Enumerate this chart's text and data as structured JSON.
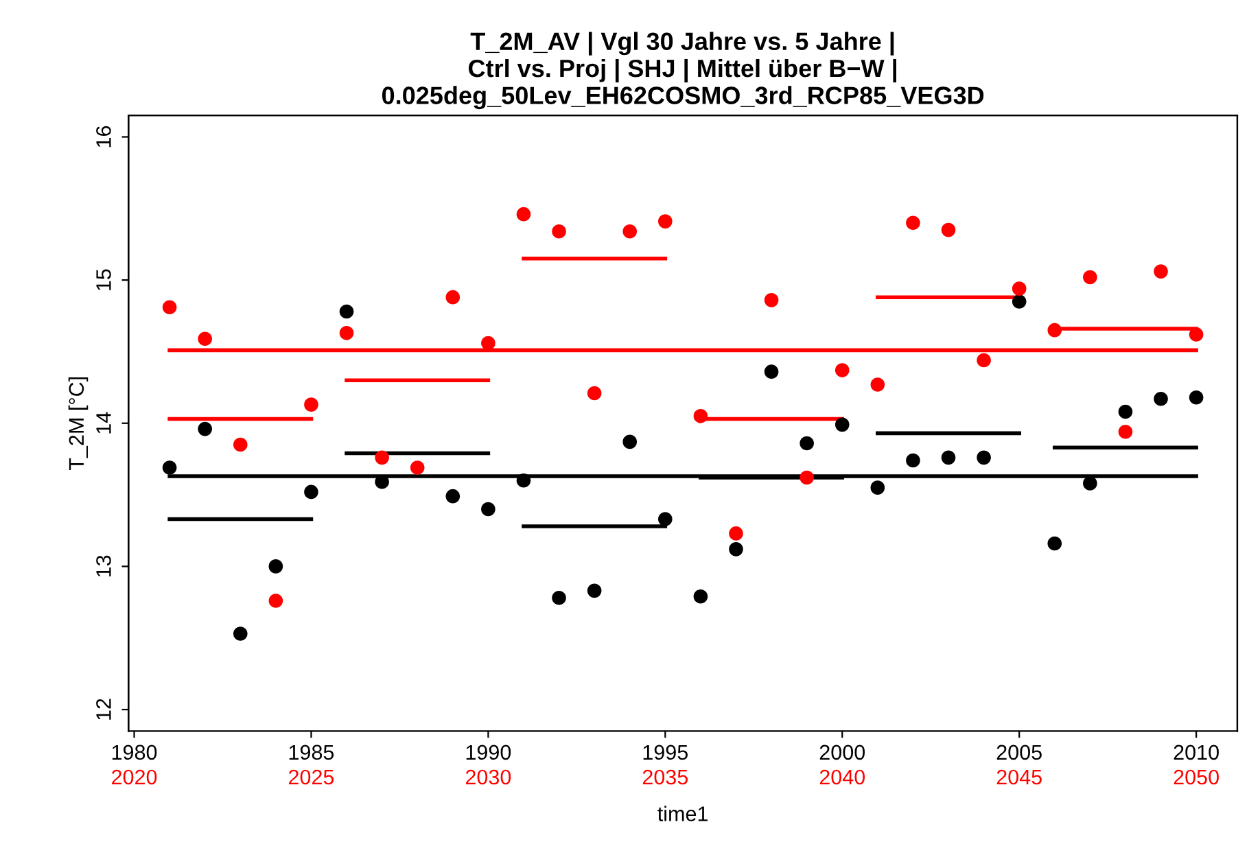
{
  "chart_data": {
    "type": "scatter",
    "title": "T_2M_AV | Vgl 30 Jahre vs. 5 Jahre |\nCtrl vs. Proj | SHJ | Mittel über B−W |\n0.025deg_50Lev_EH62COSMO_3rd_RCP85_VEG3D",
    "xlabel": "time1",
    "ylabel": "T_2M [°C]",
    "xlim": [
      1979.84,
      2011.16
    ],
    "xticks": [
      1980,
      1985,
      1990,
      1995,
      2000,
      2005,
      2010
    ],
    "x2lim": [
      2019.84,
      2051.16
    ],
    "x2ticks": [
      2020,
      2025,
      2030,
      2035,
      2040,
      2045,
      2050
    ],
    "ylim": [
      11.85,
      16.15
    ],
    "yticks": [
      12,
      13,
      14,
      15,
      16
    ],
    "grid": false,
    "legend": false,
    "series": [
      {
        "color": "#000000",
        "marker": "circle",
        "x": [
          1981,
          1982,
          1983,
          1984,
          1985,
          1986,
          1987,
          1988,
          1989,
          1990,
          1991,
          1992,
          1993,
          1994,
          1995,
          1996,
          1997,
          1998,
          1999,
          2000,
          2001,
          2002,
          2003,
          2004,
          2005,
          2006,
          2007,
          2008,
          2009,
          2010
        ],
        "values": [
          13.69,
          13.96,
          12.53,
          13.0,
          13.52,
          14.78,
          13.59,
          null,
          13.49,
          13.4,
          13.6,
          12.78,
          12.83,
          13.87,
          13.33,
          12.79,
          13.12,
          14.36,
          13.86,
          13.99,
          13.55,
          13.74,
          13.76,
          13.76,
          14.85,
          13.16,
          13.58,
          14.08,
          14.17,
          14.18
        ]
      },
      {
        "color": "#ff0000",
        "marker": "circle",
        "axis": "x2",
        "x": [
          2021,
          2022,
          2023,
          2024,
          2025,
          2026,
          2027,
          2028,
          2029,
          2030,
          2031,
          2032,
          2033,
          2034,
          2035,
          2036,
          2037,
          2038,
          2039,
          2040,
          2041,
          2042,
          2043,
          2044,
          2045,
          2046,
          2047,
          2048,
          2049,
          2050
        ],
        "values": [
          14.81,
          14.59,
          13.85,
          12.76,
          14.13,
          14.63,
          13.76,
          13.69,
          14.88,
          14.56,
          15.46,
          15.34,
          14.21,
          15.34,
          15.41,
          14.05,
          13.23,
          14.86,
          13.62,
          14.37,
          14.27,
          15.4,
          15.35,
          14.44,
          14.94,
          14.65,
          15.02,
          13.94,
          15.06,
          14.62
        ]
      },
      {
        "type": "line",
        "color": "#000000",
        "x": [
          1981,
          2010
        ],
        "values": [
          13.63,
          13.63
        ]
      },
      {
        "type": "line",
        "color": "#ff0000",
        "x": [
          1981,
          2010
        ],
        "values": [
          14.51,
          14.51
        ]
      },
      {
        "type": "line",
        "color": "#000000",
        "x": [
          1981,
          1985
        ],
        "values": [
          13.33,
          13.33
        ]
      },
      {
        "type": "line",
        "color": "#000000",
        "x": [
          1986,
          1990
        ],
        "values": [
          13.79,
          13.79
        ]
      },
      {
        "type": "line",
        "color": "#000000",
        "x": [
          1991,
          1995
        ],
        "values": [
          13.28,
          13.28
        ]
      },
      {
        "type": "line",
        "color": "#000000",
        "x": [
          1996,
          2000
        ],
        "values": [
          13.62,
          13.62
        ]
      },
      {
        "type": "line",
        "color": "#000000",
        "x": [
          2001,
          2005
        ],
        "values": [
          13.93,
          13.93
        ]
      },
      {
        "type": "line",
        "color": "#000000",
        "x": [
          2006,
          2010
        ],
        "values": [
          13.83,
          13.83
        ]
      },
      {
        "type": "line",
        "color": "#ff0000",
        "x": [
          1981,
          1985
        ],
        "values": [
          14.03,
          14.03
        ]
      },
      {
        "type": "line",
        "color": "#ff0000",
        "x": [
          1986,
          1990
        ],
        "values": [
          14.3,
          14.3
        ]
      },
      {
        "type": "line",
        "color": "#ff0000",
        "x": [
          1991,
          1995
        ],
        "values": [
          15.15,
          15.15
        ]
      },
      {
        "type": "line",
        "color": "#ff0000",
        "x": [
          1996,
          2000
        ],
        "values": [
          14.03,
          14.03
        ]
      },
      {
        "type": "line",
        "color": "#ff0000",
        "x": [
          2001,
          2005
        ],
        "values": [
          14.88,
          14.88
        ]
      },
      {
        "type": "line",
        "color": "#ff0000",
        "x": [
          2006,
          2010
        ],
        "values": [
          14.66,
          14.66
        ]
      }
    ]
  }
}
